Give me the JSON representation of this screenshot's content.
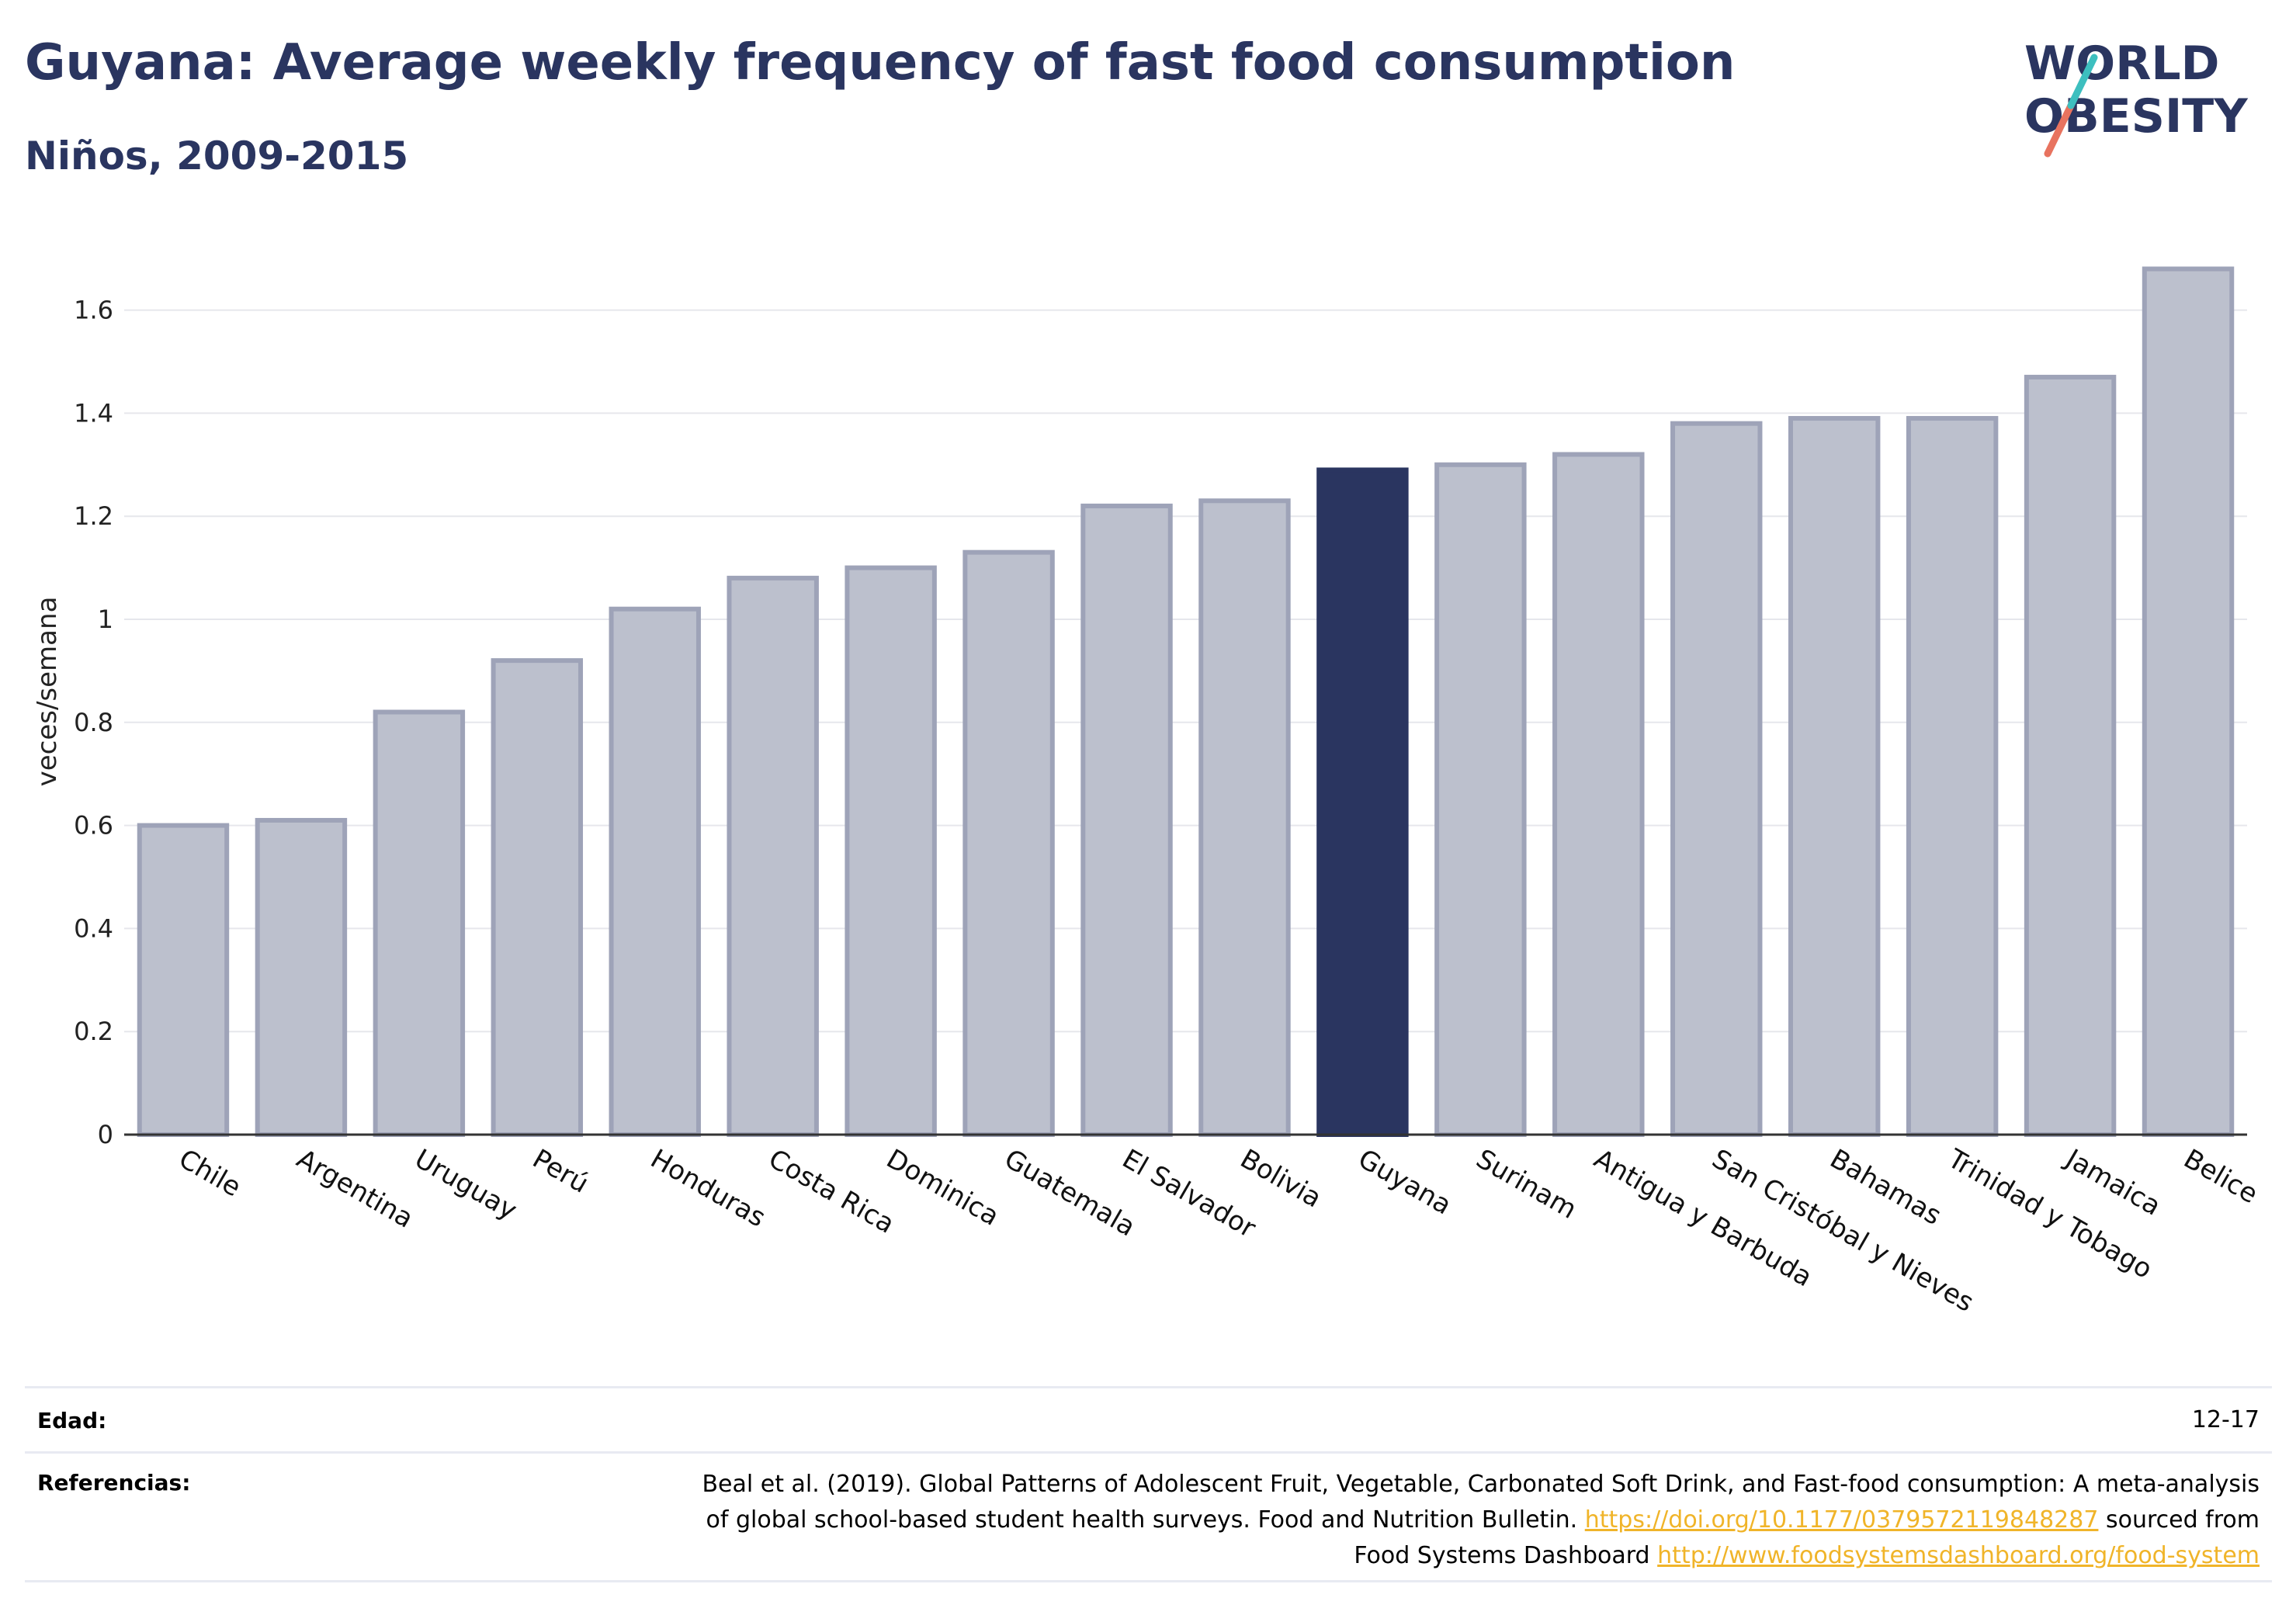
{
  "title": "Guyana: Average weekly frequency of fast food consumption",
  "subtitle": "Niños, 2009-2015",
  "logo": {
    "line1": "WORLD",
    "line2": "OBESITY",
    "colors": {
      "text": "#2a3560",
      "slash_teal": "#3dbfbf",
      "slash_coral": "#e8735f"
    }
  },
  "chart_data": {
    "type": "bar",
    "title": "",
    "xlabel": "",
    "ylabel": "veces/semana",
    "ylim": [
      0,
      1.75
    ],
    "yticks": [
      0,
      0.2,
      0.4,
      0.6,
      0.8,
      1,
      1.2,
      1.4,
      1.6
    ],
    "ytick_labels": [
      "0",
      "0.2",
      "0.4",
      "0.6",
      "0.8",
      "1",
      "1.2",
      "1.4",
      "1.6"
    ],
    "grid": true,
    "categories": [
      "Chile",
      "Argentina",
      "Uruguay",
      "Perú",
      "Honduras",
      "Costa Rica",
      "Dominica",
      "Guatemala",
      "El Salvador",
      "Bolivia",
      "Guyana",
      "Surinam",
      "Antigua y Barbuda",
      "San Cristóbal y Nieves",
      "Bahamas",
      "Trinidad y Tobago",
      "Jamaica",
      "Belice"
    ],
    "values": [
      0.6,
      0.61,
      0.82,
      0.92,
      1.02,
      1.08,
      1.1,
      1.13,
      1.22,
      1.23,
      1.29,
      1.3,
      1.32,
      1.38,
      1.39,
      1.39,
      1.47,
      1.68
    ],
    "highlight": "Guyana",
    "colors": {
      "bar": "#bcc0cd",
      "bar_edge": "#9ea3b8",
      "highlight": "#2a3560",
      "grid": "#e6e7ec",
      "axis": "#333333"
    }
  },
  "footer": {
    "age_label": "Edad:",
    "age_value": "12-17",
    "refs_label": "Referencias:",
    "refs_text_1": "Beal et al. (2019). Global Patterns of Adolescent Fruit, Vegetable, Carbonated Soft Drink, and Fast-food consumption: A meta-analysis",
    "refs_text_2": "of global school-based student health surveys. Food and Nutrition Bulletin.",
    "refs_link_1": "https://doi.org/10.1177/0379572119848287",
    "refs_text_3": "sourced from",
    "refs_text_4": "Food Systems Dashboard",
    "refs_link_2": "http://www.foodsystemsdashboard.org/food-system"
  }
}
